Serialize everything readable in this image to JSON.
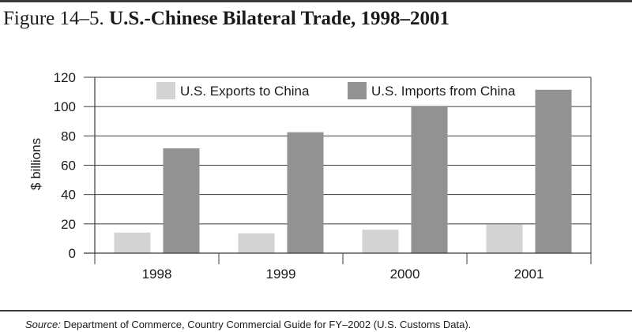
{
  "figure": {
    "number": "Figure 14–5.",
    "title": "U.S.-Chinese Bilateral Trade, 1998–2001"
  },
  "source": {
    "prefix": "Source:",
    "text": "Department of Commerce, Country Commercial Guide for FY–2002 (U.S. Customs Data)."
  },
  "chart_data": {
    "type": "bar",
    "categories": [
      "1998",
      "1999",
      "2000",
      "2001"
    ],
    "series": [
      {
        "name": "U.S. Exports to China",
        "values": [
          14,
          13.5,
          16,
          19.5
        ],
        "color": "#d3d3d3"
      },
      {
        "name": "U.S. Imports from China",
        "values": [
          71.5,
          82.5,
          100.5,
          111.5
        ],
        "color": "#929292"
      }
    ],
    "ylabel": "$ billions",
    "xlabel": "",
    "ylim": [
      0,
      120
    ],
    "yticks": [
      0,
      20,
      40,
      60,
      80,
      100,
      120
    ],
    "grid": true,
    "legend_position": "top"
  }
}
